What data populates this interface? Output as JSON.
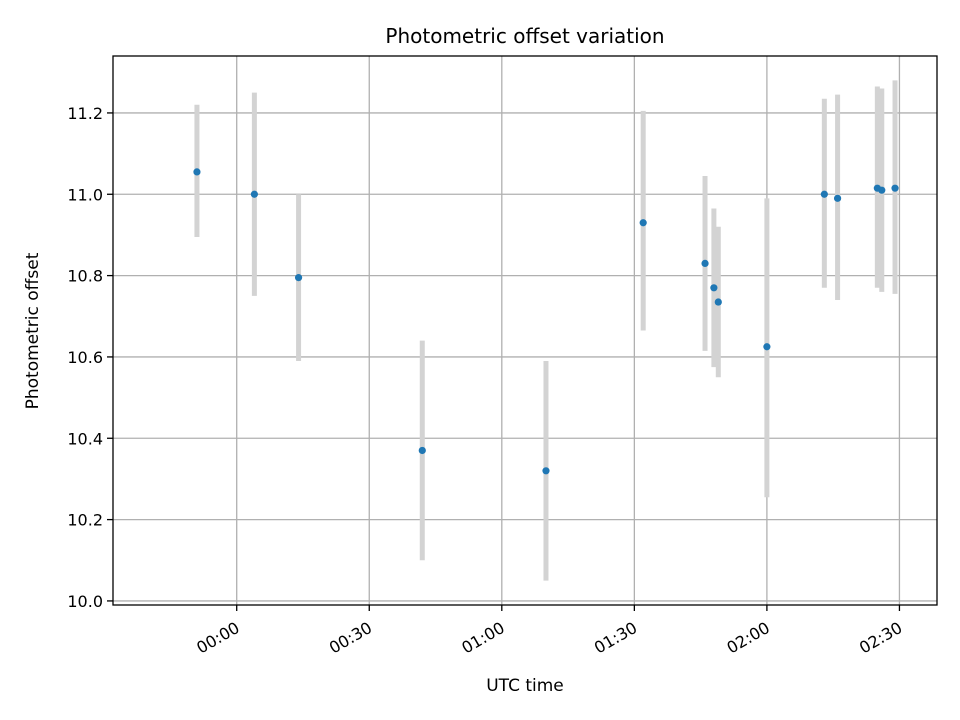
{
  "chart_data": {
    "type": "scatter",
    "title": "Photometric offset variation",
    "xlabel": "UTC time",
    "ylabel": "Photometric offset",
    "x_ticks": [
      "00:00",
      "00:30",
      "01:00",
      "01:30",
      "02:00",
      "02:30"
    ],
    "x_tick_minutes": [
      0,
      30,
      60,
      90,
      120,
      150
    ],
    "xlim_minutes": [
      -28,
      158.5
    ],
    "ylim": [
      9.99,
      11.34
    ],
    "y_ticks": [
      10.0,
      10.2,
      10.4,
      10.6,
      10.8,
      11.0,
      11.2
    ],
    "y_tick_labels": [
      "10.0",
      "10.2",
      "10.4",
      "10.6",
      "10.8",
      "11.0",
      "11.2"
    ],
    "grid": true,
    "marker_color": "#1f77b4",
    "errorbar_color": "#d3d3d3",
    "series": [
      {
        "points": [
          {
            "t": "23:51",
            "y": 11.055,
            "lo": 10.895,
            "hi": 11.22
          },
          {
            "t": "00:04",
            "y": 11.0,
            "lo": 10.75,
            "hi": 11.25
          },
          {
            "t": "00:14",
            "y": 10.795,
            "lo": 10.59,
            "hi": 11.0
          },
          {
            "t": "00:42",
            "y": 10.37,
            "lo": 10.1,
            "hi": 10.64
          },
          {
            "t": "01:10",
            "y": 10.32,
            "lo": 10.05,
            "hi": 10.59
          },
          {
            "t": "01:32",
            "y": 10.93,
            "lo": 10.665,
            "hi": 11.205
          },
          {
            "t": "01:46",
            "y": 10.83,
            "lo": 10.615,
            "hi": 11.045
          },
          {
            "t": "01:48",
            "y": 10.77,
            "lo": 10.575,
            "hi": 10.965
          },
          {
            "t": "01:49",
            "y": 10.735,
            "lo": 10.55,
            "hi": 10.92
          },
          {
            "t": "02:00",
            "y": 10.625,
            "lo": 10.255,
            "hi": 10.99
          },
          {
            "t": "02:13",
            "y": 11.0,
            "lo": 10.77,
            "hi": 11.235
          },
          {
            "t": "02:16",
            "y": 10.99,
            "lo": 10.74,
            "hi": 11.245
          },
          {
            "t": "02:25",
            "y": 11.015,
            "lo": 10.77,
            "hi": 11.265
          },
          {
            "t": "02:26",
            "y": 11.01,
            "lo": 10.76,
            "hi": 11.26
          },
          {
            "t": "02:29",
            "y": 11.015,
            "lo": 10.755,
            "hi": 11.28
          }
        ]
      }
    ]
  }
}
